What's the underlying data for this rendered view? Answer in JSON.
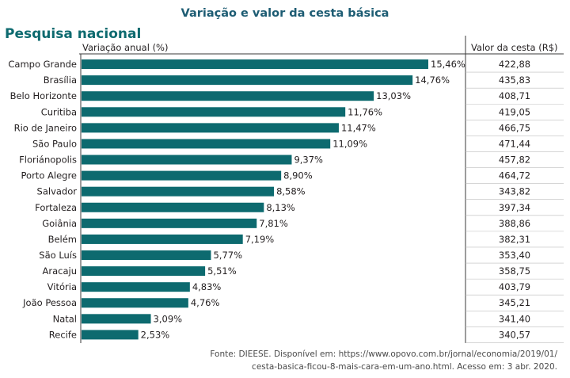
{
  "title": "Variação e valor da cesta básica",
  "subtitle": "Pesquisa nacional",
  "chart_data": {
    "type": "bar",
    "orientation": "horizontal",
    "xlabel": "Variação anual (%)",
    "table_header": "Valor da cesta (R$)",
    "categories": [
      "Campo Grande",
      "Brasília",
      "Belo Horizonte",
      "Curitiba",
      "Rio de Janeiro",
      "São Paulo",
      "Floriánopolis",
      "Porto Alegre",
      "Salvador",
      "Fortaleza",
      "Goiânia",
      "Belém",
      "São Luís",
      "Aracaju",
      "Vitória",
      "João Pessoa",
      "Natal",
      "Recife"
    ],
    "values": [
      15.46,
      14.76,
      13.03,
      11.76,
      11.47,
      11.09,
      9.37,
      8.9,
      8.58,
      8.13,
      7.81,
      7.19,
      5.77,
      5.51,
      4.83,
      4.76,
      3.09,
      2.53
    ],
    "value_labels": [
      "15,46%",
      "14,76%",
      "13,03%",
      "11,76%",
      "11,47%",
      "11,09%",
      "9,37%",
      "8,90%",
      "8,58%",
      "8,13%",
      "7,81%",
      "7,19%",
      "5,77%",
      "5,51%",
      "4,83%",
      "4,76%",
      "3,09%",
      "2,53%"
    ],
    "basket_values": [
      "422,88",
      "435,83",
      "408,71",
      "419,05",
      "466,75",
      "471,44",
      "457,82",
      "464,72",
      "343,82",
      "397,34",
      "388,86",
      "382,31",
      "353,40",
      "358,75",
      "403,79",
      "345,21",
      "341,40",
      "340,57"
    ],
    "bar_color": "#0d6a6f",
    "xlim": [
      0,
      15.46
    ]
  },
  "source": {
    "line1": "Fonte: DIEESE. Disponível em: https://www.opovo.com.br/jornal/economia/2019/01/",
    "line2": "cesta-basica-ficou-8-mais-cara-em-um-ano.html. Acesso em: 3 abr. 2020."
  }
}
